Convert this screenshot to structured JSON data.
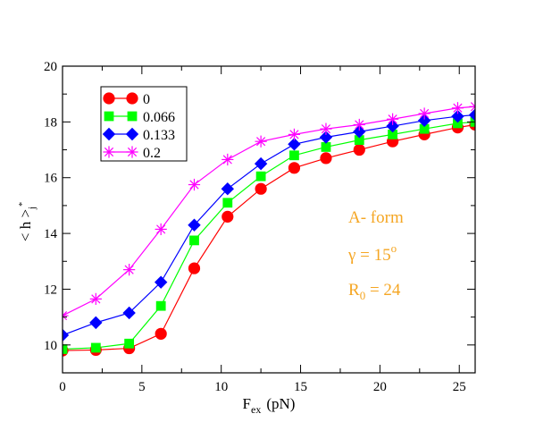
{
  "chart_data": {
    "type": "line",
    "xlabel": "F",
    "xlabel_sub": "ex",
    "xlabel_unit": "(pN)",
    "ylabel": "< h >",
    "ylabel_sub": "j",
    "ylabel_sup": "*",
    "xlim": [
      0,
      26
    ],
    "ylim": [
      9,
      20
    ],
    "x_ticks": [
      0,
      5,
      10,
      15,
      20,
      25
    ],
    "x_tick_labels": [
      "0",
      "5",
      "10",
      "15",
      "20",
      "25"
    ],
    "y_ticks": [
      10,
      12,
      14,
      16,
      18,
      20
    ],
    "y_tick_labels": [
      "10",
      "12",
      "14",
      "16",
      "18",
      "20"
    ],
    "grid": false,
    "legend_position": "top-left",
    "x": [
      0,
      2.1,
      4.2,
      6.2,
      8.3,
      10.4,
      12.5,
      14.6,
      16.6,
      18.7,
      20.8,
      22.8,
      24.9,
      26
    ],
    "series": [
      {
        "name": "0",
        "color": "#ff0000",
        "marker": "circle",
        "values": [
          9.8,
          9.82,
          9.88,
          10.4,
          12.75,
          14.6,
          15.6,
          16.35,
          16.7,
          17.0,
          17.3,
          17.55,
          17.8,
          17.9
        ]
      },
      {
        "name": "0.066",
        "color": "#00ff00",
        "marker": "square",
        "values": [
          9.85,
          9.9,
          10.05,
          11.4,
          13.75,
          15.1,
          16.05,
          16.8,
          17.1,
          17.35,
          17.55,
          17.75,
          17.95,
          18.0
        ]
      },
      {
        "name": "0.133",
        "color": "#0000ff",
        "marker": "diamond",
        "values": [
          10.35,
          10.8,
          11.15,
          12.25,
          14.3,
          15.6,
          16.5,
          17.2,
          17.45,
          17.65,
          17.85,
          18.05,
          18.2,
          18.25
        ]
      },
      {
        "name": "0.2",
        "color": "#ff00ff",
        "marker": "star",
        "values": [
          11.05,
          11.65,
          12.7,
          14.15,
          15.75,
          16.65,
          17.3,
          17.55,
          17.75,
          17.9,
          18.1,
          18.3,
          18.5,
          18.55
        ]
      }
    ],
    "annotations": {
      "color": "#f5a623",
      "line1": "A- form",
      "line2_prefix": "γ = 15",
      "line2_sup": "o",
      "line3_prefix": "R",
      "line3_sub": "0",
      "line3_suffix": " = 24"
    }
  }
}
